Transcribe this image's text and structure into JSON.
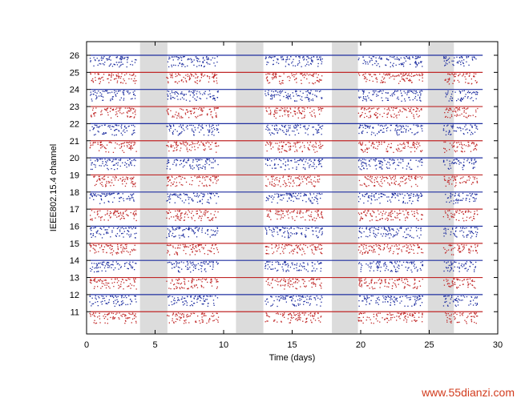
{
  "chart_data": {
    "type": "scatter",
    "title": "",
    "xlabel": "Time (days)",
    "ylabel": "IEEE802.15.4 channel",
    "xlim": [
      0,
      30
    ],
    "xticks": [
      0,
      5,
      10,
      15,
      20,
      25,
      30
    ],
    "channels": [
      26,
      25,
      24,
      23,
      22,
      21,
      20,
      19,
      18,
      17,
      16,
      15,
      14,
      13,
      12,
      11
    ],
    "channel_colors": {
      "26": "#1f2fa0",
      "25": "#c02828",
      "24": "#1f2fa0",
      "23": "#c02828",
      "22": "#1f2fa0",
      "21": "#c02828",
      "20": "#1f2fa0",
      "19": "#c02828",
      "18": "#1f2fa0",
      "17": "#c02828",
      "16": "#1f2fa0",
      "15": "#c02828",
      "14": "#1f2fa0",
      "13": "#c02828",
      "12": "#1f2fa0",
      "11": "#c02828"
    },
    "shaded_periods": [
      [
        3.9,
        5.9
      ],
      [
        10.9,
        12.9
      ],
      [
        17.9,
        19.8
      ],
      [
        24.9,
        26.8
      ]
    ],
    "activity_periods": [
      [
        0.2,
        3.6
      ],
      [
        5.8,
        9.6
      ],
      [
        13.0,
        17.2
      ],
      [
        19.8,
        24.5
      ],
      [
        26.0,
        28.5
      ]
    ],
    "grid": false
  },
  "watermark": "www.55dianzi.com"
}
